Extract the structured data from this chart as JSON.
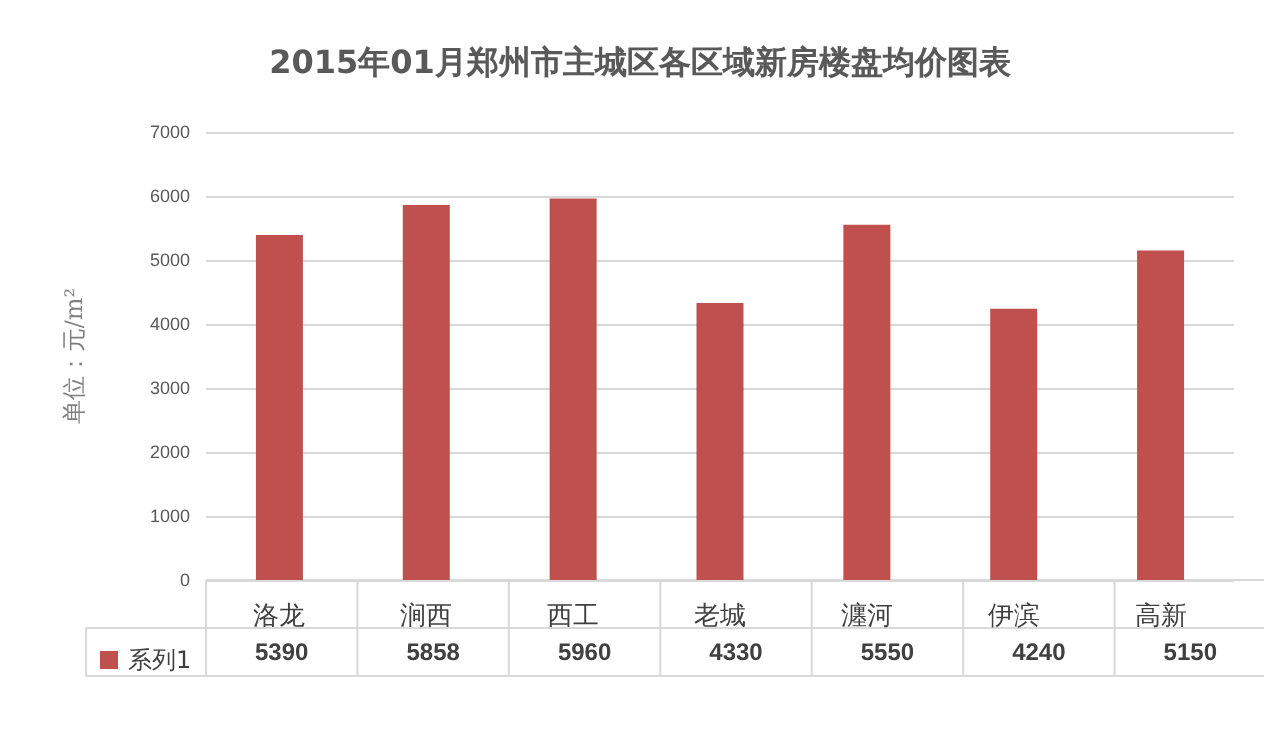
{
  "chart_data": {
    "type": "bar",
    "title": "2015年01月郑州市主城区各区域新房楼盘均价图表",
    "ylabel": "单位：元/m²",
    "categories": [
      "洛龙",
      "涧西",
      "西工",
      "老城",
      "瀍河",
      "伊滨",
      "高新"
    ],
    "series": [
      {
        "name": "系列1",
        "color": "#c0504d",
        "values": [
          5390,
          5858,
          5960,
          4330,
          5550,
          4240,
          5150
        ]
      }
    ],
    "ylim": [
      0,
      7000
    ],
    "yticks": [
      0,
      1000,
      2000,
      3000,
      4000,
      5000,
      6000,
      7000
    ],
    "grid": "y",
    "legend": "bottom left",
    "data_labels": true
  }
}
